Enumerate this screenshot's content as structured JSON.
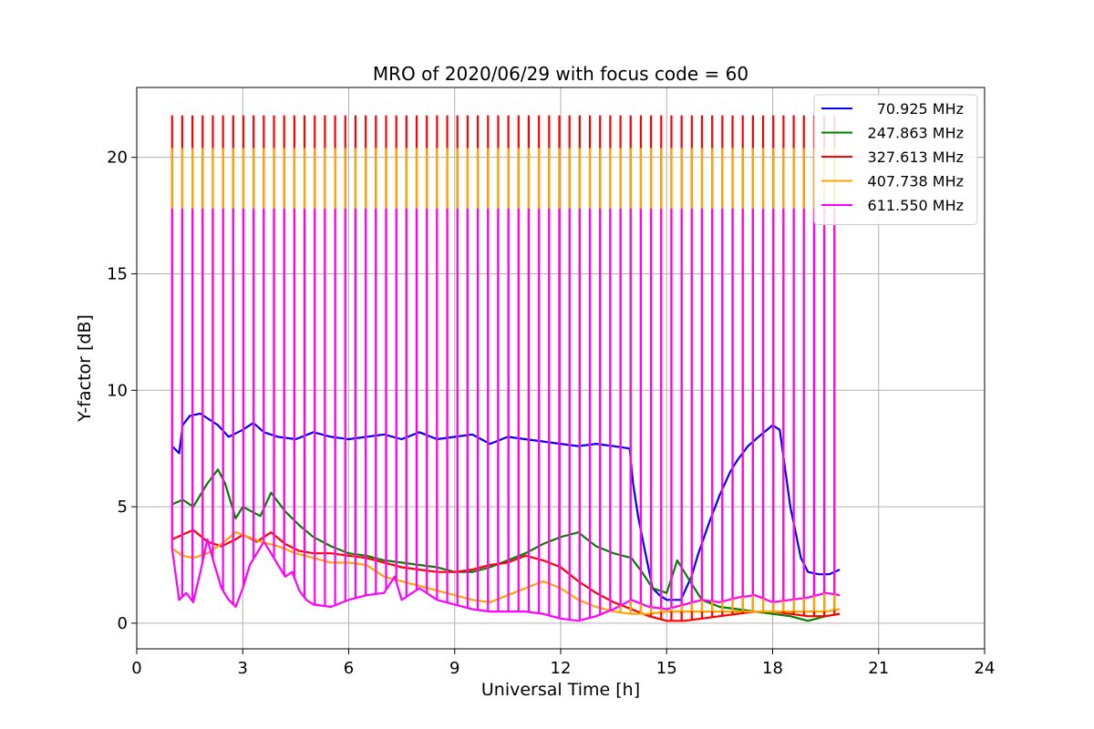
{
  "chart_data": {
    "type": "line",
    "title": "MRO of 2020/06/29 with focus code = 60",
    "xlabel": "Universal Time [h]",
    "ylabel": "Y-factor [dB]",
    "xlim": [
      0,
      24
    ],
    "ylim": [
      -1.1,
      23.0
    ],
    "x_ticks": [
      0,
      3,
      6,
      9,
      12,
      15,
      18,
      21,
      24
    ],
    "y_ticks": [
      0,
      5,
      10,
      15,
      20
    ],
    "grid": true,
    "legend_position": "top-right",
    "calibration_spikes": {
      "start_hour": 1.0,
      "end_hour": 19.75,
      "count": 66,
      "peak_values": {
        "327.613 MHz": 21.8,
        "407.738 MHz": 20.4,
        "611.550 MHz": 17.8
      }
    },
    "series": [
      {
        "name": "70.925 MHz",
        "color": "#0000ff",
        "x": [
          1.0,
          1.2,
          1.3,
          1.5,
          1.8,
          2.0,
          2.3,
          2.6,
          3.0,
          3.3,
          3.6,
          4.0,
          4.5,
          5.0,
          5.5,
          6.0,
          6.5,
          7.0,
          7.5,
          8.0,
          8.5,
          9.0,
          9.5,
          10.0,
          10.5,
          11.0,
          11.5,
          12.0,
          12.5,
          13.0,
          13.5,
          13.95,
          14.05,
          14.2,
          14.4,
          14.6,
          14.8,
          15.0,
          15.2,
          15.4,
          15.7,
          15.9,
          16.2,
          16.5,
          16.8,
          17.0,
          17.3,
          17.6,
          18.0,
          18.2,
          18.5,
          18.8,
          19.0,
          19.3,
          19.6,
          19.9
        ],
        "y": [
          7.6,
          7.3,
          8.5,
          8.9,
          9.0,
          8.8,
          8.5,
          8.0,
          8.3,
          8.6,
          8.2,
          8.0,
          7.9,
          8.2,
          8.0,
          7.9,
          8.0,
          8.1,
          7.9,
          8.2,
          7.9,
          8.0,
          8.1,
          7.7,
          8.0,
          7.9,
          7.8,
          7.7,
          7.6,
          7.7,
          7.6,
          7.5,
          6.0,
          4.5,
          3.0,
          1.5,
          1.2,
          1.0,
          1.0,
          1.0,
          2.0,
          3.0,
          4.3,
          5.5,
          6.5,
          7.0,
          7.6,
          8.0,
          8.5,
          8.3,
          5.0,
          2.8,
          2.2,
          2.1,
          2.1,
          2.3
        ]
      },
      {
        "name": "247.863 MHz",
        "color": "#008000",
        "x": [
          1.0,
          1.3,
          1.6,
          2.0,
          2.3,
          2.5,
          2.8,
          3.0,
          3.5,
          3.8,
          4.2,
          4.6,
          5.0,
          5.5,
          6.0,
          6.5,
          7.0,
          7.5,
          8.0,
          8.5,
          9.0,
          9.5,
          10.0,
          10.5,
          11.0,
          11.5,
          12.0,
          12.5,
          13.0,
          13.5,
          14.0,
          14.3,
          14.6,
          15.0,
          15.3,
          15.7,
          16.0,
          16.5,
          17.0,
          17.5,
          18.0,
          18.5,
          19.0,
          19.5,
          19.9
        ],
        "y": [
          5.1,
          5.3,
          5.0,
          6.0,
          6.6,
          6.0,
          4.5,
          5.0,
          4.6,
          5.6,
          4.8,
          4.2,
          3.7,
          3.3,
          3.0,
          2.9,
          2.7,
          2.6,
          2.5,
          2.4,
          2.2,
          2.2,
          2.4,
          2.7,
          3.0,
          3.4,
          3.7,
          3.9,
          3.3,
          3.0,
          2.8,
          2.2,
          1.5,
          1.3,
          2.7,
          1.7,
          1.0,
          0.7,
          0.6,
          0.5,
          0.4,
          0.3,
          0.1,
          0.3,
          0.4
        ]
      },
      {
        "name": "327.613 MHz",
        "color": "#ff0000",
        "x": [
          1.0,
          1.3,
          1.6,
          2.0,
          2.4,
          2.8,
          3.0,
          3.4,
          3.8,
          4.2,
          4.6,
          5.0,
          5.5,
          6.0,
          6.5,
          7.0,
          7.5,
          8.0,
          8.5,
          9.0,
          9.5,
          10.0,
          10.5,
          11.0,
          11.5,
          12.0,
          12.5,
          13.0,
          13.5,
          14.0,
          14.5,
          15.0,
          15.5,
          16.0,
          16.5,
          17.0,
          17.5,
          18.0,
          18.5,
          19.0,
          19.5,
          19.9
        ],
        "y": [
          3.6,
          3.8,
          4.0,
          3.5,
          3.3,
          3.6,
          3.8,
          3.5,
          3.9,
          3.4,
          3.1,
          3.0,
          3.0,
          2.9,
          2.8,
          2.6,
          2.4,
          2.3,
          2.2,
          2.2,
          2.3,
          2.5,
          2.6,
          2.9,
          2.7,
          2.4,
          1.8,
          1.3,
          0.9,
          0.6,
          0.3,
          0.1,
          0.1,
          0.2,
          0.3,
          0.4,
          0.5,
          0.5,
          0.4,
          0.3,
          0.3,
          0.4
        ]
      },
      {
        "name": "407.738 MHz",
        "color": "#ffa500",
        "x": [
          1.0,
          1.3,
          1.6,
          2.0,
          2.4,
          2.8,
          3.0,
          3.5,
          4.0,
          4.5,
          5.0,
          5.5,
          6.0,
          6.5,
          7.0,
          7.5,
          8.0,
          8.5,
          9.0,
          9.5,
          10.0,
          10.5,
          11.0,
          11.5,
          12.0,
          12.5,
          13.0,
          13.5,
          14.0,
          14.5,
          15.0,
          15.5,
          16.0,
          16.5,
          17.0,
          17.5,
          18.0,
          18.5,
          19.0,
          19.5,
          19.9
        ],
        "y": [
          3.2,
          2.9,
          2.8,
          3.0,
          3.4,
          3.9,
          3.8,
          3.5,
          3.3,
          3.0,
          2.8,
          2.6,
          2.6,
          2.5,
          2.0,
          1.8,
          1.6,
          1.4,
          1.2,
          1.0,
          0.9,
          1.2,
          1.5,
          1.8,
          1.5,
          1.0,
          0.7,
          0.5,
          0.4,
          0.4,
          0.5,
          0.5,
          0.5,
          0.5,
          0.5,
          0.5,
          0.5,
          0.5,
          0.5,
          0.5,
          0.6
        ]
      },
      {
        "name": "611.550 MHz",
        "color": "#ff00ff",
        "x": [
          1.0,
          1.2,
          1.4,
          1.6,
          1.8,
          2.0,
          2.2,
          2.4,
          2.6,
          2.8,
          3.0,
          3.2,
          3.4,
          3.6,
          3.8,
          4.0,
          4.2,
          4.4,
          4.6,
          4.8,
          5.0,
          5.5,
          6.0,
          6.5,
          7.0,
          7.3,
          7.5,
          8.0,
          8.5,
          9.0,
          9.5,
          10.0,
          10.5,
          11.0,
          11.5,
          12.0,
          12.5,
          13.0,
          13.5,
          14.0,
          14.5,
          15.0,
          15.5,
          16.0,
          16.5,
          17.0,
          17.5,
          18.0,
          18.5,
          19.0,
          19.5,
          19.9
        ],
        "y": [
          3.2,
          1.0,
          1.3,
          0.9,
          2.2,
          3.6,
          2.5,
          1.5,
          1.0,
          0.7,
          1.5,
          2.5,
          3.0,
          3.5,
          3.0,
          2.5,
          2.0,
          2.2,
          1.4,
          1.0,
          0.8,
          0.7,
          1.0,
          1.2,
          1.3,
          2.0,
          1.0,
          1.5,
          1.0,
          0.8,
          0.6,
          0.5,
          0.5,
          0.5,
          0.4,
          0.2,
          0.1,
          0.3,
          0.6,
          1.0,
          0.7,
          0.6,
          0.8,
          1.0,
          0.9,
          1.1,
          1.2,
          0.9,
          1.0,
          1.1,
          1.3,
          1.2
        ]
      }
    ]
  }
}
